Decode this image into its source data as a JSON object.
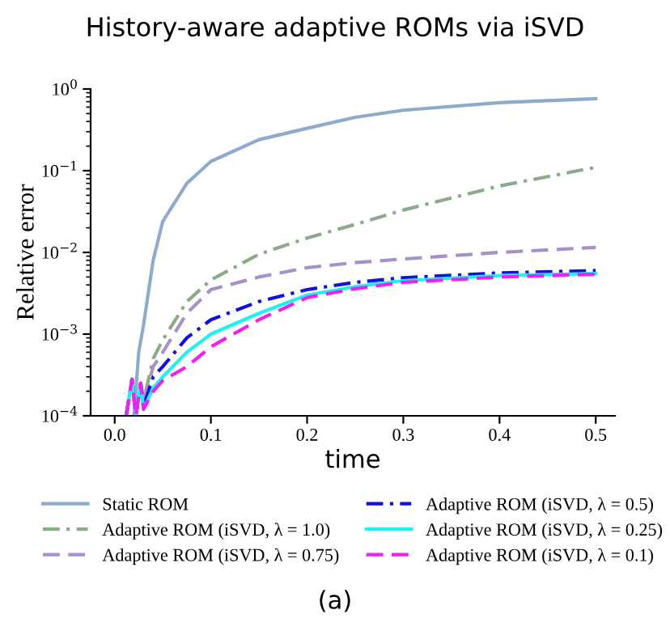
{
  "chart_data": {
    "type": "line",
    "title": "History-aware adaptive ROMs via iSVD",
    "xlabel": "time",
    "ylabel": "Relative error",
    "log": "y",
    "grid": false,
    "legend": "bottom",
    "annotations": [
      "(a)"
    ],
    "xlim": [
      -0.025,
      0.52
    ],
    "xticks": [
      {
        "value": 0,
        "label": "0.0"
      },
      0.1,
      0.2,
      0.3,
      0.4,
      0.5
    ],
    "ylim": [
      0.0001,
      1
    ],
    "yticks": [
      {
        "value": 0.0001,
        "label": "10$^{−4}$"
      },
      {
        "value": 0.001,
        "label": "10$^{−3}$"
      },
      {
        "value": 0.01,
        "label": "10$^{−2}$"
      },
      {
        "value": 0.1,
        "label": "10$^{−1}$"
      },
      {
        "value": 1,
        "label": "10$^{0}$"
      }
    ],
    "series": [
      {
        "name": "Static ROM",
        "color": "#8faacc",
        "line_style": "solid",
        "x": [
          0.02,
          0.025,
          0.03,
          0.04,
          0.05,
          0.075,
          0.1,
          0.15,
          0.2,
          0.25,
          0.3,
          0.4,
          0.5
        ],
        "values": [
          0.0001,
          0.0006,
          0.0013,
          0.008,
          0.024,
          0.07,
          0.13,
          0.24,
          0.33,
          0.45,
          0.55,
          0.68,
          0.76
        ]
      },
      {
        "name": "Adaptive ROM (iSVD, λ = 1.0)",
        "color": "#8aab88",
        "line_style": "dashdot",
        "x": [
          0.012,
          0.018,
          0.022,
          0.027,
          0.03,
          0.04,
          0.05,
          0.075,
          0.1,
          0.15,
          0.2,
          0.25,
          0.3,
          0.4,
          0.5
        ],
        "values": [
          0.0001,
          0.00028,
          0.0001,
          0.00025,
          0.00015,
          0.0005,
          0.00085,
          0.0025,
          0.0046,
          0.0095,
          0.015,
          0.022,
          0.033,
          0.065,
          0.11
        ]
      },
      {
        "name": "Adaptive ROM (iSVD, λ = 0.75)",
        "color": "#a891c8",
        "line_style": "dashed",
        "x": [
          0.012,
          0.018,
          0.022,
          0.027,
          0.03,
          0.04,
          0.05,
          0.075,
          0.1,
          0.15,
          0.2,
          0.25,
          0.3,
          0.4,
          0.5
        ],
        "values": [
          0.0001,
          0.00028,
          0.0001,
          0.00025,
          0.00015,
          0.0004,
          0.0006,
          0.0018,
          0.0035,
          0.005,
          0.0065,
          0.0075,
          0.0083,
          0.01,
          0.0115
        ]
      },
      {
        "name": "Adaptive ROM (iSVD, λ = 0.5)",
        "color": "#1010e0",
        "line_style": "dashdot",
        "x": [
          0.012,
          0.018,
          0.022,
          0.027,
          0.03,
          0.04,
          0.05,
          0.075,
          0.1,
          0.15,
          0.2,
          0.25,
          0.3,
          0.4,
          0.5
        ],
        "values": [
          0.0001,
          0.00028,
          0.0001,
          0.00025,
          0.00013,
          0.0003,
          0.0004,
          0.0009,
          0.0015,
          0.0025,
          0.0035,
          0.0043,
          0.0049,
          0.0056,
          0.006
        ]
      },
      {
        "name": "Adaptive ROM (iSVD, λ = 0.25)",
        "color": "#20f0f0",
        "line_style": "solid",
        "x": [
          0.012,
          0.018,
          0.022,
          0.027,
          0.03,
          0.04,
          0.05,
          0.075,
          0.1,
          0.15,
          0.2,
          0.25,
          0.3,
          0.4,
          0.5
        ],
        "values": [
          0.0001,
          0.00028,
          0.0001,
          0.00025,
          0.00012,
          0.00022,
          0.0003,
          0.0006,
          0.001,
          0.0018,
          0.003,
          0.0038,
          0.0045,
          0.0052,
          0.0055
        ]
      },
      {
        "name": "Adaptive ROM (iSVD, λ = 0.1)",
        "color": "#f020f0",
        "line_style": "dashed",
        "x": [
          0.012,
          0.018,
          0.022,
          0.027,
          0.03,
          0.04,
          0.05,
          0.075,
          0.1,
          0.15,
          0.2,
          0.25,
          0.3,
          0.4,
          0.5
        ],
        "values": [
          0.0001,
          0.00028,
          0.0001,
          0.00025,
          0.00012,
          0.0002,
          0.00027,
          0.0004,
          0.0007,
          0.0015,
          0.0028,
          0.0036,
          0.0043,
          0.005,
          0.0054
        ]
      }
    ]
  }
}
